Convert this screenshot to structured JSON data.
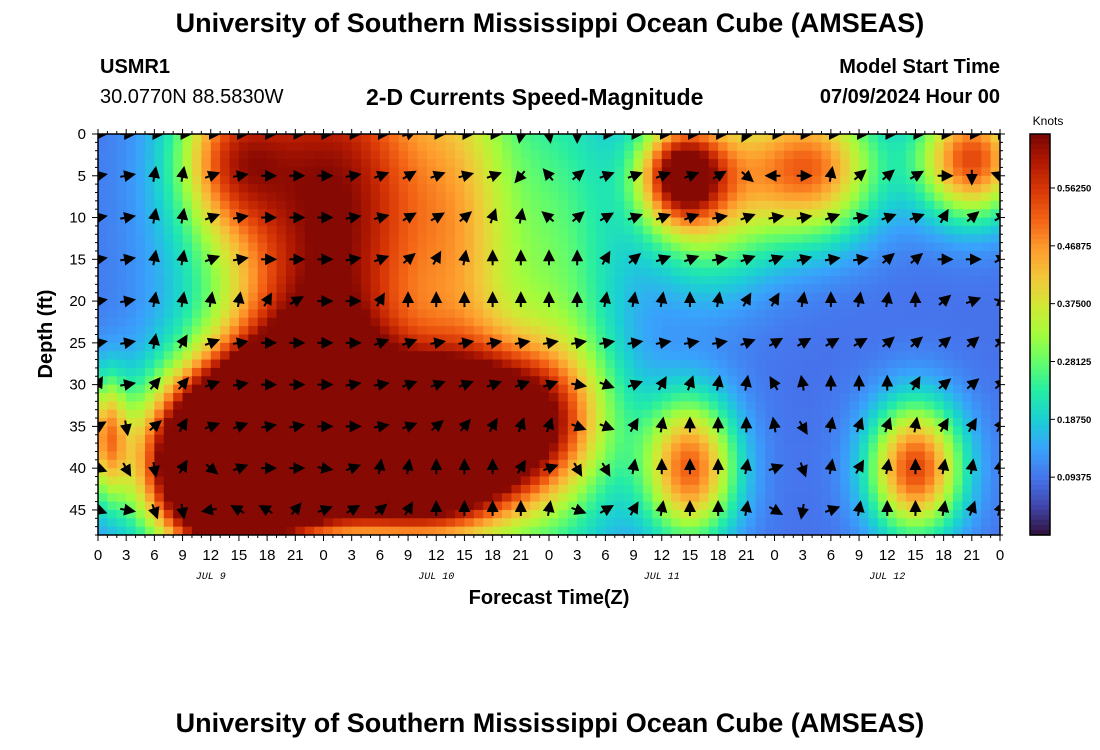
{
  "page": {
    "title": "University of Southern Mississippi Ocean Cube (AMSEAS)",
    "title_bottom": "University of Southern Mississippi Ocean Cube (AMSEAS)",
    "station_id": "USMR1",
    "station_coords": "30.0770N  88.5830W",
    "subtitle": "2-D Currents Speed-Magnitude",
    "model_start_label": "Model Start Time",
    "model_start_value": "07/09/2024 Hour 00"
  },
  "chart_data": {
    "type": "heatmap",
    "title": "2-D Currents Speed-Magnitude",
    "xlabel": "Forecast Time(Z)",
    "ylabel": "Depth (ft)",
    "colorbar_label": "Knots",
    "x_tick_labels": [
      "0",
      "3",
      "6",
      "9",
      "12",
      "15",
      "18",
      "21",
      "0",
      "3",
      "6",
      "9",
      "12",
      "15",
      "18",
      "21",
      "0",
      "3",
      "6",
      "9",
      "12",
      "15",
      "18",
      "21",
      "0",
      "3",
      "6",
      "9",
      "12",
      "15",
      "18",
      "21",
      "0"
    ],
    "x_range_hours": [
      0,
      96
    ],
    "day_labels": [
      {
        "label": "JUL 9",
        "hour": 12
      },
      {
        "label": "JUL 10",
        "hour": 36
      },
      {
        "label": "JUL 11",
        "hour": 60
      },
      {
        "label": "JUL 12",
        "hour": 84
      }
    ],
    "y_ticks": [
      0,
      5,
      10,
      15,
      20,
      25,
      30,
      35,
      40,
      45
    ],
    "y_range_ft": [
      0,
      48
    ],
    "colorbar_ticks": [
      "0.56250",
      "0.46875",
      "0.37500",
      "0.28125",
      "0.18750",
      "0.09375"
    ],
    "colorbar_tick_values": [
      0.5625,
      0.46875,
      0.375,
      0.28125,
      0.1875,
      0.09375
    ],
    "colorbar_range": [
      0,
      0.65
    ],
    "colorscale": [
      "#30123b",
      "#4145ab",
      "#4675ed",
      "#39a2fc",
      "#1bcfd4",
      "#24eca6",
      "#61fc6c",
      "#a4fc3b",
      "#d1e834",
      "#f3c63a",
      "#fe9b2d",
      "#f36315",
      "#d93806",
      "#b11901",
      "#7a0403"
    ],
    "speed_blobs": [
      {
        "hour": 25,
        "depth": 8,
        "sx": 9,
        "sy": 18,
        "amp": 0.55
      },
      {
        "hour": 23,
        "depth": 30,
        "sx": 6,
        "sy": 8,
        "amp": 0.3
      },
      {
        "hour": 14,
        "depth": 3,
        "sx": 4,
        "sy": 6,
        "amp": 0.25
      },
      {
        "hour": 15,
        "depth": 40,
        "sx": 7,
        "sy": 6,
        "amp": 0.5
      },
      {
        "hour": 20,
        "depth": 35,
        "sx": 7,
        "sy": 6,
        "amp": 0.3
      },
      {
        "hour": 13,
        "depth": 45,
        "sx": 4,
        "sy": 5,
        "amp": 0.25
      },
      {
        "hour": 14,
        "depth": 38,
        "sx": 6,
        "sy": 7,
        "amp": 0.47
      },
      {
        "hour": 19,
        "depth": 37,
        "sx": 5,
        "sy": 6,
        "amp": 0.3
      },
      {
        "hour": 31,
        "depth": 38,
        "sx": 7,
        "sy": 6,
        "amp": 0.5
      },
      {
        "hour": 36,
        "depth": 38,
        "sx": 7,
        "sy": 7,
        "amp": 0.5
      },
      {
        "hour": 45,
        "depth": 34,
        "sx": 6,
        "sy": 6,
        "amp": 0.35
      },
      {
        "hour": 63,
        "depth": 40,
        "sx": 3.5,
        "sy": 6,
        "amp": 0.42
      },
      {
        "hour": 62,
        "depth": 5,
        "sx": 3,
        "sy": 4,
        "amp": 0.4
      },
      {
        "hour": 65,
        "depth": 6,
        "sx": 5,
        "sy": 8,
        "amp": 0.3
      },
      {
        "hour": 76,
        "depth": 4,
        "sx": 5,
        "sy": 6,
        "amp": 0.4
      },
      {
        "hour": 93,
        "depth": 3,
        "sx": 4,
        "sy": 5,
        "amp": 0.45
      },
      {
        "hour": 87,
        "depth": 40,
        "sx": 3.5,
        "sy": 5.5,
        "amp": 0.45
      },
      {
        "hour": 1,
        "depth": 36,
        "sx": 1.5,
        "sy": 5,
        "amp": 0.3
      },
      {
        "hour": 39,
        "depth": 14,
        "sx": 4,
        "sy": 20,
        "amp": 0.18
      },
      {
        "hour": 49,
        "depth": 22,
        "sx": 5,
        "sy": 25,
        "amp": 0.18
      }
    ],
    "vectors": {
      "hours": [
        0,
        3,
        6,
        9,
        12,
        15,
        18,
        21,
        24,
        27,
        30,
        33,
        36,
        39,
        42,
        45,
        48,
        51,
        54,
        57,
        60,
        63,
        66,
        69,
        72,
        75,
        78,
        81,
        84,
        87,
        90,
        93,
        96
      ],
      "depths": [
        0,
        5,
        10,
        15,
        20,
        25,
        30,
        35,
        40,
        45
      ],
      "angles_deg": [
        [
          0,
          0,
          0,
          0,
          0,
          0,
          0,
          0,
          0,
          0,
          0,
          -20,
          0,
          0,
          0,
          100,
          80,
          90,
          0,
          0,
          0,
          0,
          0,
          120,
          0,
          0,
          0,
          0,
          0,
          0,
          0,
          0,
          0
        ],
        [
          -10,
          -10,
          -80,
          -80,
          -20,
          -10,
          0,
          0,
          0,
          -10,
          -20,
          -30,
          -20,
          -15,
          -20,
          130,
          -130,
          -40,
          -20,
          -20,
          -20,
          -20,
          -30,
          40,
          180,
          0,
          -80,
          -40,
          -40,
          -30,
          0,
          90,
          -160
        ],
        [
          -10,
          -10,
          -80,
          -80,
          -20,
          -10,
          0,
          0,
          0,
          -10,
          -15,
          -30,
          -30,
          -40,
          -70,
          -80,
          -140,
          -40,
          -30,
          -20,
          -20,
          -20,
          -10,
          -20,
          -10,
          -10,
          -20,
          -10,
          -20,
          -20,
          -60,
          -40,
          -30
        ],
        [
          -10,
          -10,
          -80,
          -80,
          -20,
          -10,
          0,
          0,
          0,
          -10,
          -20,
          -40,
          -60,
          -80,
          -90,
          -90,
          -90,
          -90,
          -60,
          -40,
          -20,
          -20,
          -10,
          -20,
          -20,
          -15,
          -10,
          -10,
          -40,
          -40,
          0,
          0,
          -30
        ],
        [
          -10,
          -10,
          -80,
          -80,
          -80,
          -80,
          -60,
          -30,
          0,
          0,
          -60,
          -90,
          -90,
          -90,
          -90,
          -90,
          -90,
          -90,
          -80,
          -80,
          -80,
          -90,
          -80,
          -60,
          -60,
          -80,
          -90,
          -80,
          -80,
          -90,
          -40,
          -20,
          20
        ],
        [
          -10,
          -10,
          -80,
          -60,
          -20,
          -10,
          0,
          0,
          0,
          0,
          -20,
          -20,
          -10,
          -10,
          -10,
          -10,
          -10,
          -10,
          -10,
          -10,
          -10,
          -10,
          -10,
          -20,
          -30,
          -30,
          -30,
          -30,
          -40,
          -40,
          -40,
          -40,
          -40
        ],
        [
          -60,
          -10,
          -50,
          -50,
          -20,
          -10,
          0,
          0,
          0,
          -10,
          -10,
          -20,
          -20,
          -20,
          -20,
          -20,
          -20,
          10,
          20,
          -20,
          -60,
          -70,
          -80,
          -80,
          -120,
          -100,
          -90,
          -90,
          -90,
          -60,
          -40,
          -40,
          -40
        ],
        [
          -30,
          80,
          -40,
          -60,
          -20,
          -20,
          -10,
          -10,
          0,
          0,
          -10,
          -20,
          -40,
          -50,
          -60,
          -70,
          -70,
          20,
          20,
          -60,
          -80,
          -90,
          -90,
          -90,
          -100,
          60,
          -80,
          -70,
          -70,
          -80,
          -60,
          -60,
          -60
        ],
        [
          20,
          60,
          80,
          -60,
          40,
          -20,
          0,
          0,
          10,
          -20,
          -80,
          -80,
          -90,
          -90,
          -90,
          -60,
          -20,
          60,
          60,
          -80,
          -90,
          -90,
          -90,
          -80,
          -20,
          70,
          -80,
          -60,
          -80,
          -90,
          -80,
          -80,
          -80
        ],
        [
          20,
          10,
          70,
          80,
          170,
          -150,
          -150,
          -50,
          -20,
          -30,
          -40,
          -60,
          -90,
          -90,
          -90,
          -90,
          -80,
          20,
          -30,
          -60,
          -80,
          -90,
          -90,
          -80,
          30,
          100,
          -20,
          -80,
          -90,
          -90,
          -80,
          -70,
          -70
        ]
      ]
    }
  }
}
